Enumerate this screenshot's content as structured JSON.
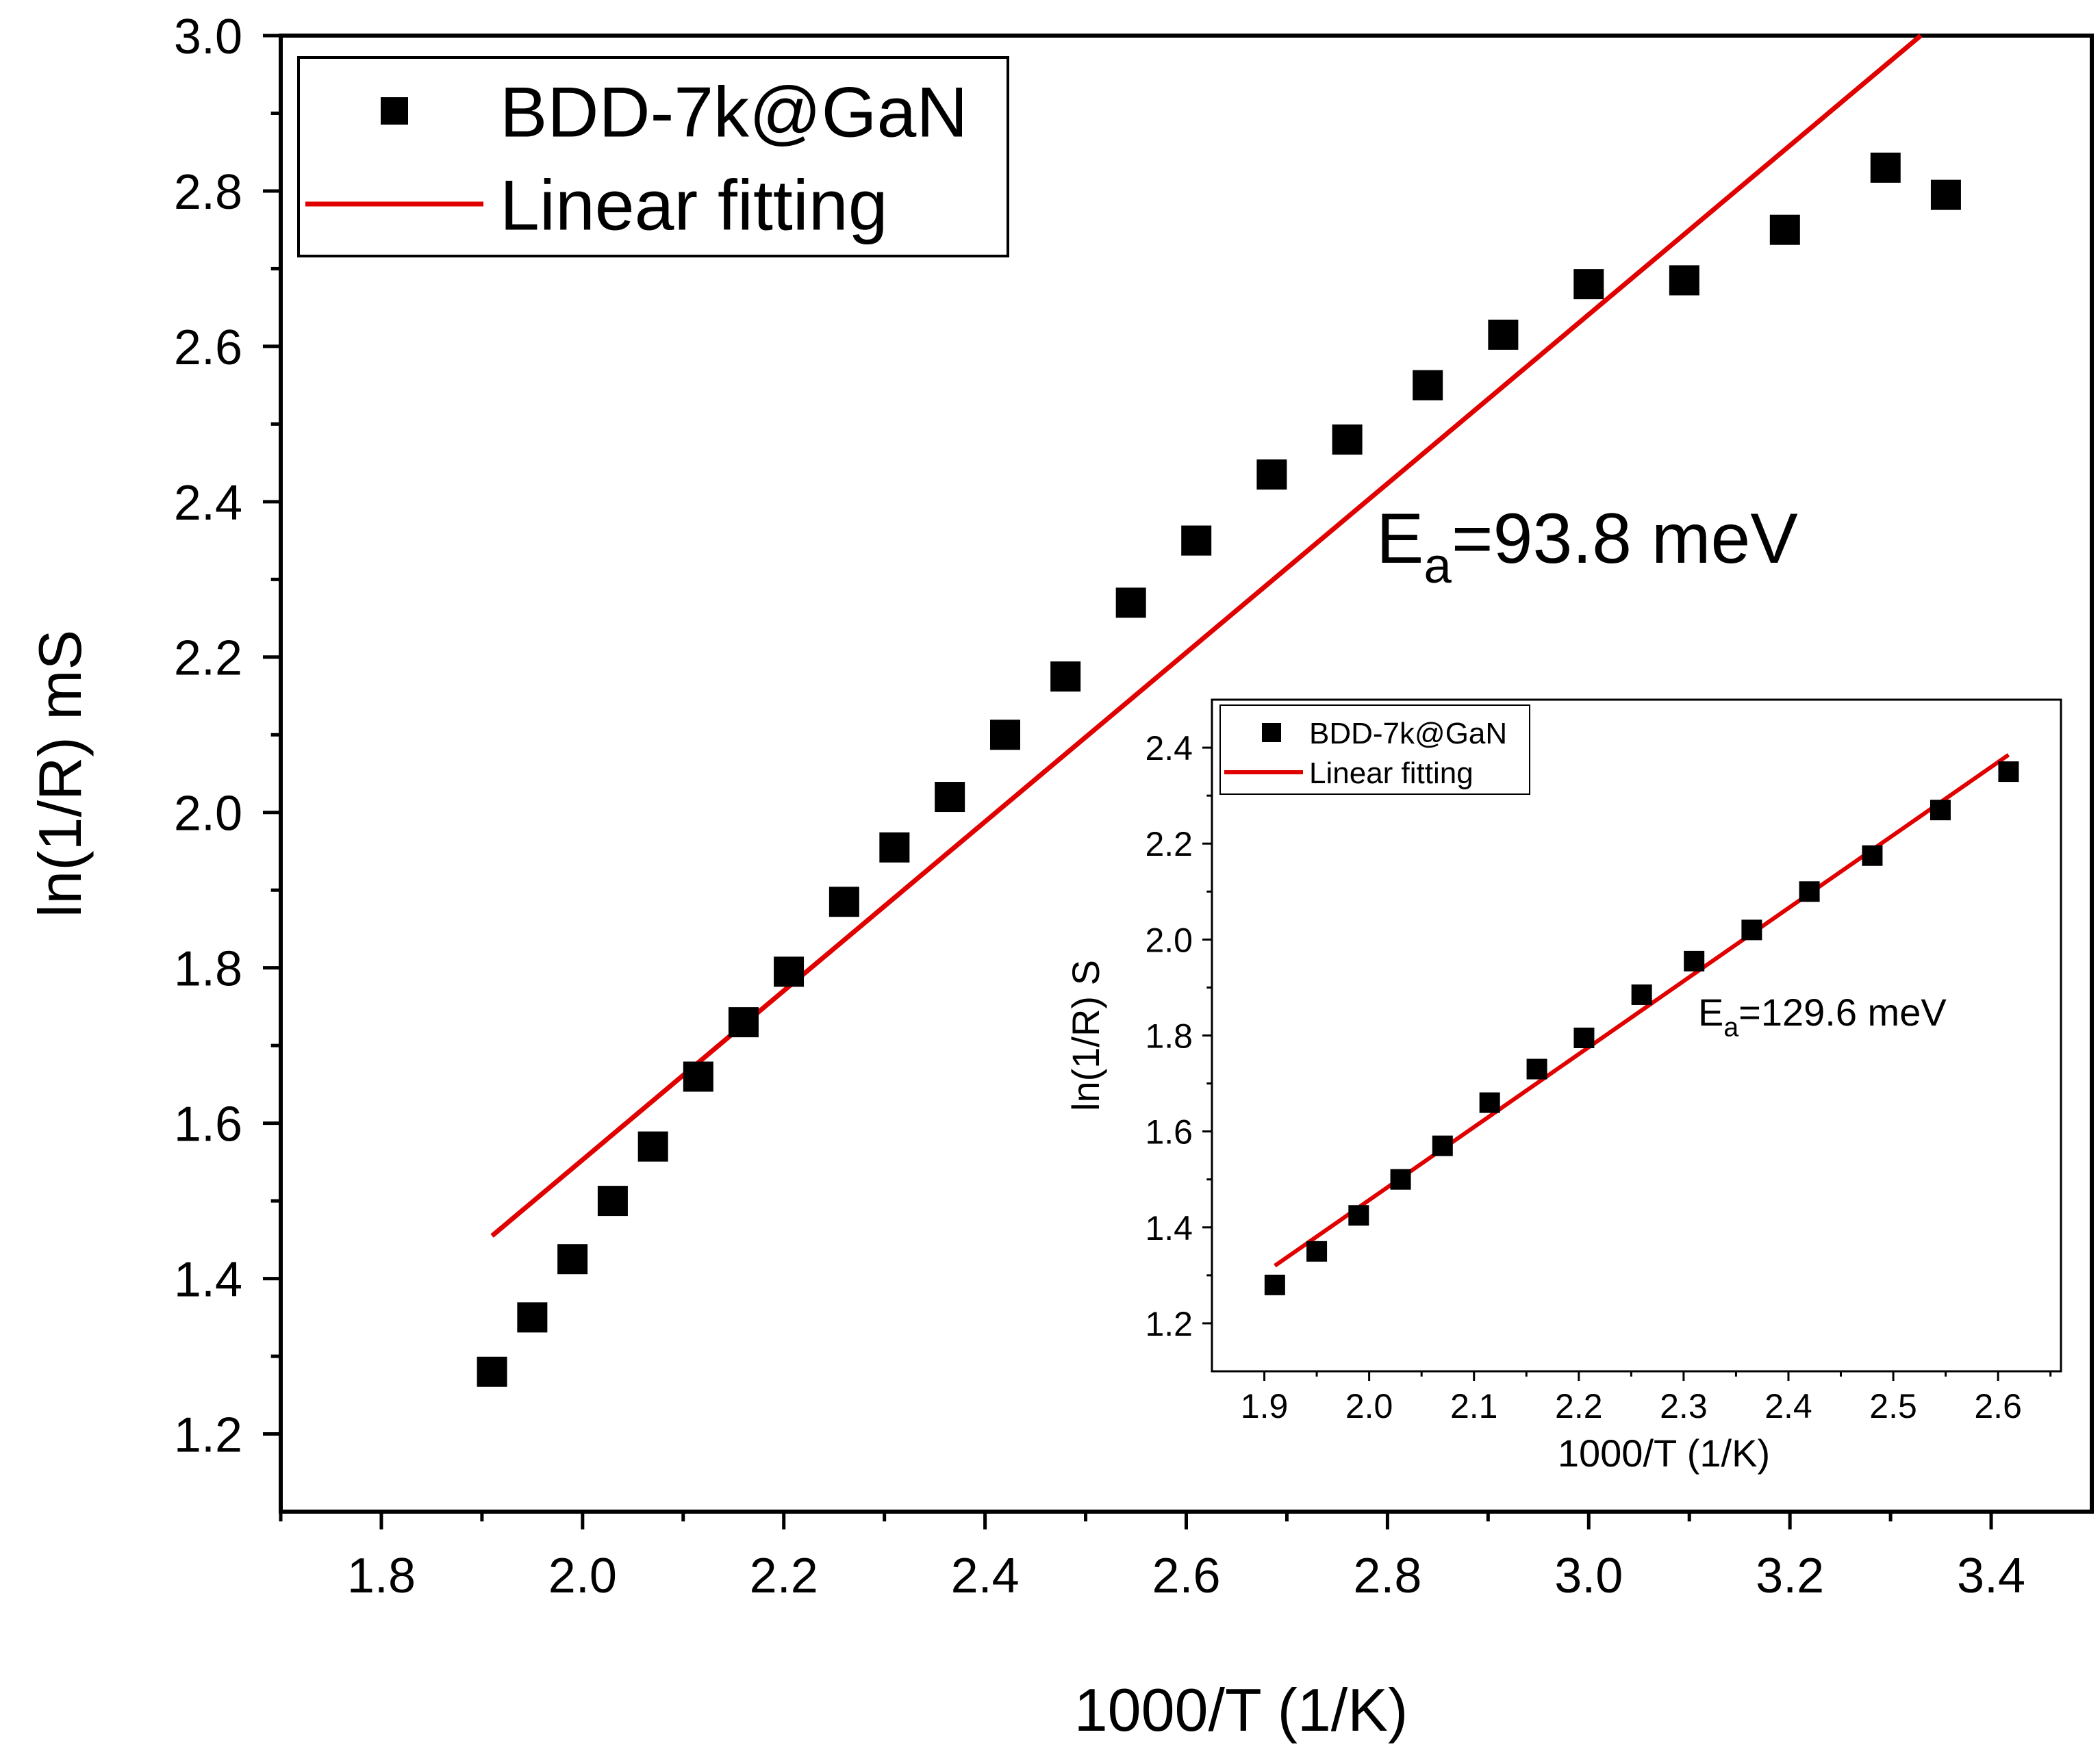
{
  "colors": {
    "marker": "#000000",
    "fit": "#e00000",
    "axis": "#000000",
    "background": "#ffffff"
  },
  "chart_data": [
    {
      "id": "main",
      "type": "scatter",
      "xlabel": "1000/T (1/K)",
      "ylabel": "ln(1/R) mS",
      "xlim": [
        1.7,
        3.5
      ],
      "ylim": [
        1.1,
        3.0
      ],
      "xticks": [
        "1.8",
        "2.0",
        "2.2",
        "2.4",
        "2.6",
        "2.8",
        "3.0",
        "3.2",
        "3.4"
      ],
      "yticks": [
        "1.2",
        "1.4",
        "1.6",
        "1.8",
        "2.0",
        "2.2",
        "2.4",
        "2.6",
        "2.8",
        "3.0"
      ],
      "legend": {
        "position": "top-left",
        "entries": [
          "BDD-7k@GaN",
          "Linear fitting"
        ]
      },
      "annotation": {
        "main": "E",
        "sub": "a",
        "rest": "=93.8 meV"
      },
      "series": [
        {
          "name": "BDD-7k@GaN",
          "x": [
            1.91,
            1.95,
            1.99,
            2.03,
            2.07,
            2.115,
            2.16,
            2.205,
            2.26,
            2.31,
            2.365,
            2.42,
            2.48,
            2.545,
            2.61,
            2.685,
            2.76,
            2.84,
            2.915,
            3.0,
            3.095,
            3.195,
            3.295,
            3.355
          ],
          "y": [
            1.28,
            1.35,
            1.425,
            1.5,
            1.57,
            1.66,
            1.73,
            1.795,
            1.885,
            1.955,
            2.02,
            2.1,
            2.175,
            2.27,
            2.35,
            2.435,
            2.48,
            2.55,
            2.615,
            2.68,
            2.685,
            2.75,
            2.83,
            2.795
          ]
        },
        {
          "name": "Linear fitting",
          "x": [
            1.91,
            3.33
          ],
          "y": [
            1.455,
            3.0
          ]
        }
      ]
    },
    {
      "id": "inset",
      "type": "scatter",
      "xlabel": "1000/T (1/K)",
      "ylabel": "ln(1/R) S",
      "xlim": [
        1.85,
        2.66
      ],
      "ylim": [
        1.1,
        2.5
      ],
      "xticks": [
        "1.9",
        "2.0",
        "2.1",
        "2.2",
        "2.3",
        "2.4",
        "2.5",
        "2.6"
      ],
      "yticks": [
        "1.2",
        "1.4",
        "1.6",
        "1.8",
        "2.0",
        "2.2",
        "2.4"
      ],
      "legend": {
        "position": "top-left",
        "entries": [
          "BDD-7k@GaN",
          "Linear fitting"
        ]
      },
      "annotation": {
        "main": "E",
        "sub": "a",
        "rest": "=129.6 meV"
      },
      "series": [
        {
          "name": "BDD-7k@GaN",
          "x": [
            1.91,
            1.95,
            1.99,
            2.03,
            2.07,
            2.115,
            2.16,
            2.205,
            2.26,
            2.31,
            2.365,
            2.42,
            2.48,
            2.545,
            2.61
          ],
          "y": [
            1.28,
            1.35,
            1.425,
            1.5,
            1.57,
            1.66,
            1.73,
            1.795,
            1.885,
            1.955,
            2.02,
            2.1,
            2.175,
            2.27,
            2.35
          ]
        },
        {
          "name": "Linear fitting",
          "x": [
            1.91,
            2.61
          ],
          "y": [
            1.32,
            2.385
          ]
        }
      ]
    }
  ]
}
